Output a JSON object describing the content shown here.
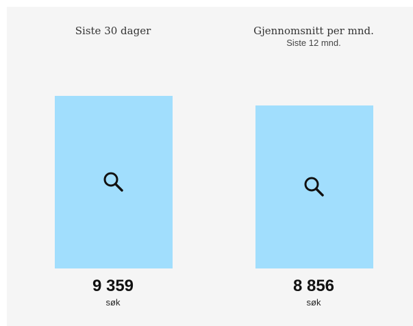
{
  "chart_data": {
    "type": "bar",
    "categories": [
      "Siste 30 dager",
      "Gjennomsnitt per mnd."
    ],
    "subtitles": [
      "",
      "Siste 12 mnd."
    ],
    "values": [
      9359,
      8856
    ],
    "value_labels": [
      "9 359",
      "8 856"
    ],
    "unit_label": "søk",
    "ylim": [
      0,
      9359
    ],
    "grid": false,
    "bar_color": "#a1defd",
    "icon": "search-icon"
  }
}
